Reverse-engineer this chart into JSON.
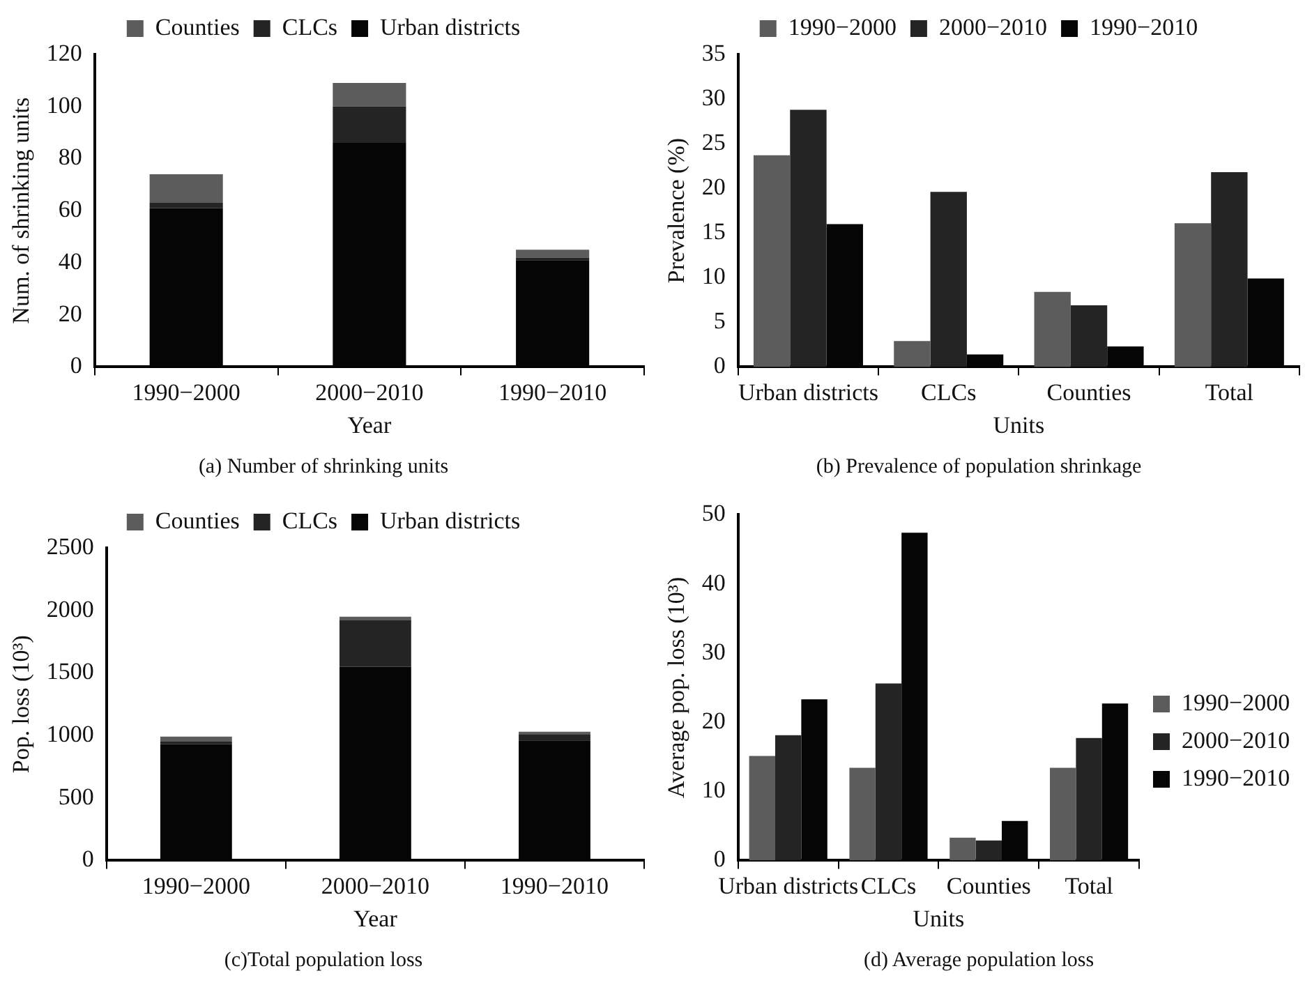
{
  "chart_data": [
    {
      "type": "bar",
      "title": "(a) Number of shrinking units",
      "xlabel": "Year",
      "ylabel": "Num. of shrinking units",
      "categories": [
        "1990−2000",
        "2000−2010",
        "1990−2010"
      ],
      "stacked": true,
      "legend": "top",
      "ylim": [
        0,
        120
      ],
      "yticks": [
        0,
        20,
        40,
        60,
        80,
        100,
        120
      ],
      "series": [
        {
          "name": "Urban districts",
          "color": "#050505",
          "values": [
            61,
            86,
            41
          ]
        },
        {
          "name": "CLCs",
          "color": "#242424",
          "values": [
            2,
            14,
            1
          ]
        },
        {
          "name": "Counties",
          "color": "#5c5c5c",
          "values": [
            11,
            9,
            3
          ]
        }
      ]
    },
    {
      "type": "bar",
      "title": "(b) Prevalence of population shrinkage",
      "xlabel": "Units",
      "ylabel": "Prevalence (%)",
      "categories": [
        "Urban districts",
        "CLCs",
        "Counties",
        "Total"
      ],
      "legend": "top",
      "ylim": [
        0,
        35
      ],
      "yticks": [
        0,
        5,
        10,
        15,
        20,
        25,
        30,
        35
      ],
      "series": [
        {
          "name": "1990−2000",
          "color": "#5c5c5c",
          "values": [
            23.7,
            2.9,
            8.4,
            16.1
          ]
        },
        {
          "name": "2000−2010",
          "color": "#242424",
          "values": [
            28.8,
            19.6,
            6.9,
            21.8
          ]
        },
        {
          "name": "1990−2010",
          "color": "#050505",
          "values": [
            16,
            1.4,
            2.3,
            9.9
          ]
        }
      ]
    },
    {
      "type": "bar",
      "title": "(c)Total population loss",
      "xlabel": "Year",
      "ylabel": "Pop. loss (10³)",
      "categories": [
        "1990−2000",
        "2000−2010",
        "1990−2010"
      ],
      "stacked": true,
      "legend": "top",
      "ylim": [
        0,
        2500
      ],
      "yticks": [
        0,
        500,
        1000,
        1500,
        2000,
        2500
      ],
      "series": [
        {
          "name": "Urban districts",
          "color": "#050505",
          "values": [
            930,
            1550,
            960
          ]
        },
        {
          "name": "CLCs",
          "color": "#242424",
          "values": [
            20,
            370,
            50
          ]
        },
        {
          "name": "Counties",
          "color": "#5c5c5c",
          "values": [
            40,
            30,
            20
          ]
        }
      ]
    },
    {
      "type": "bar",
      "title": "(d) Average population loss",
      "xlabel": "Units",
      "ylabel": "Average pop. loss (10³)",
      "categories": [
        "Urban districts",
        "CLCs",
        "Counties",
        "Total"
      ],
      "legend": "right",
      "ylim": [
        0,
        50
      ],
      "yticks": [
        0,
        10,
        20,
        30,
        40,
        50
      ],
      "series": [
        {
          "name": "1990−2000",
          "color": "#5c5c5c",
          "values": [
            15.1,
            13.4,
            3.3,
            13.4
          ]
        },
        {
          "name": "2000−2010",
          "color": "#242424",
          "values": [
            18.1,
            25.6,
            2.9,
            17.7
          ]
        },
        {
          "name": "1990−2010",
          "color": "#050505",
          "values": [
            23.3,
            47.4,
            5.7,
            22.7
          ]
        }
      ]
    }
  ]
}
